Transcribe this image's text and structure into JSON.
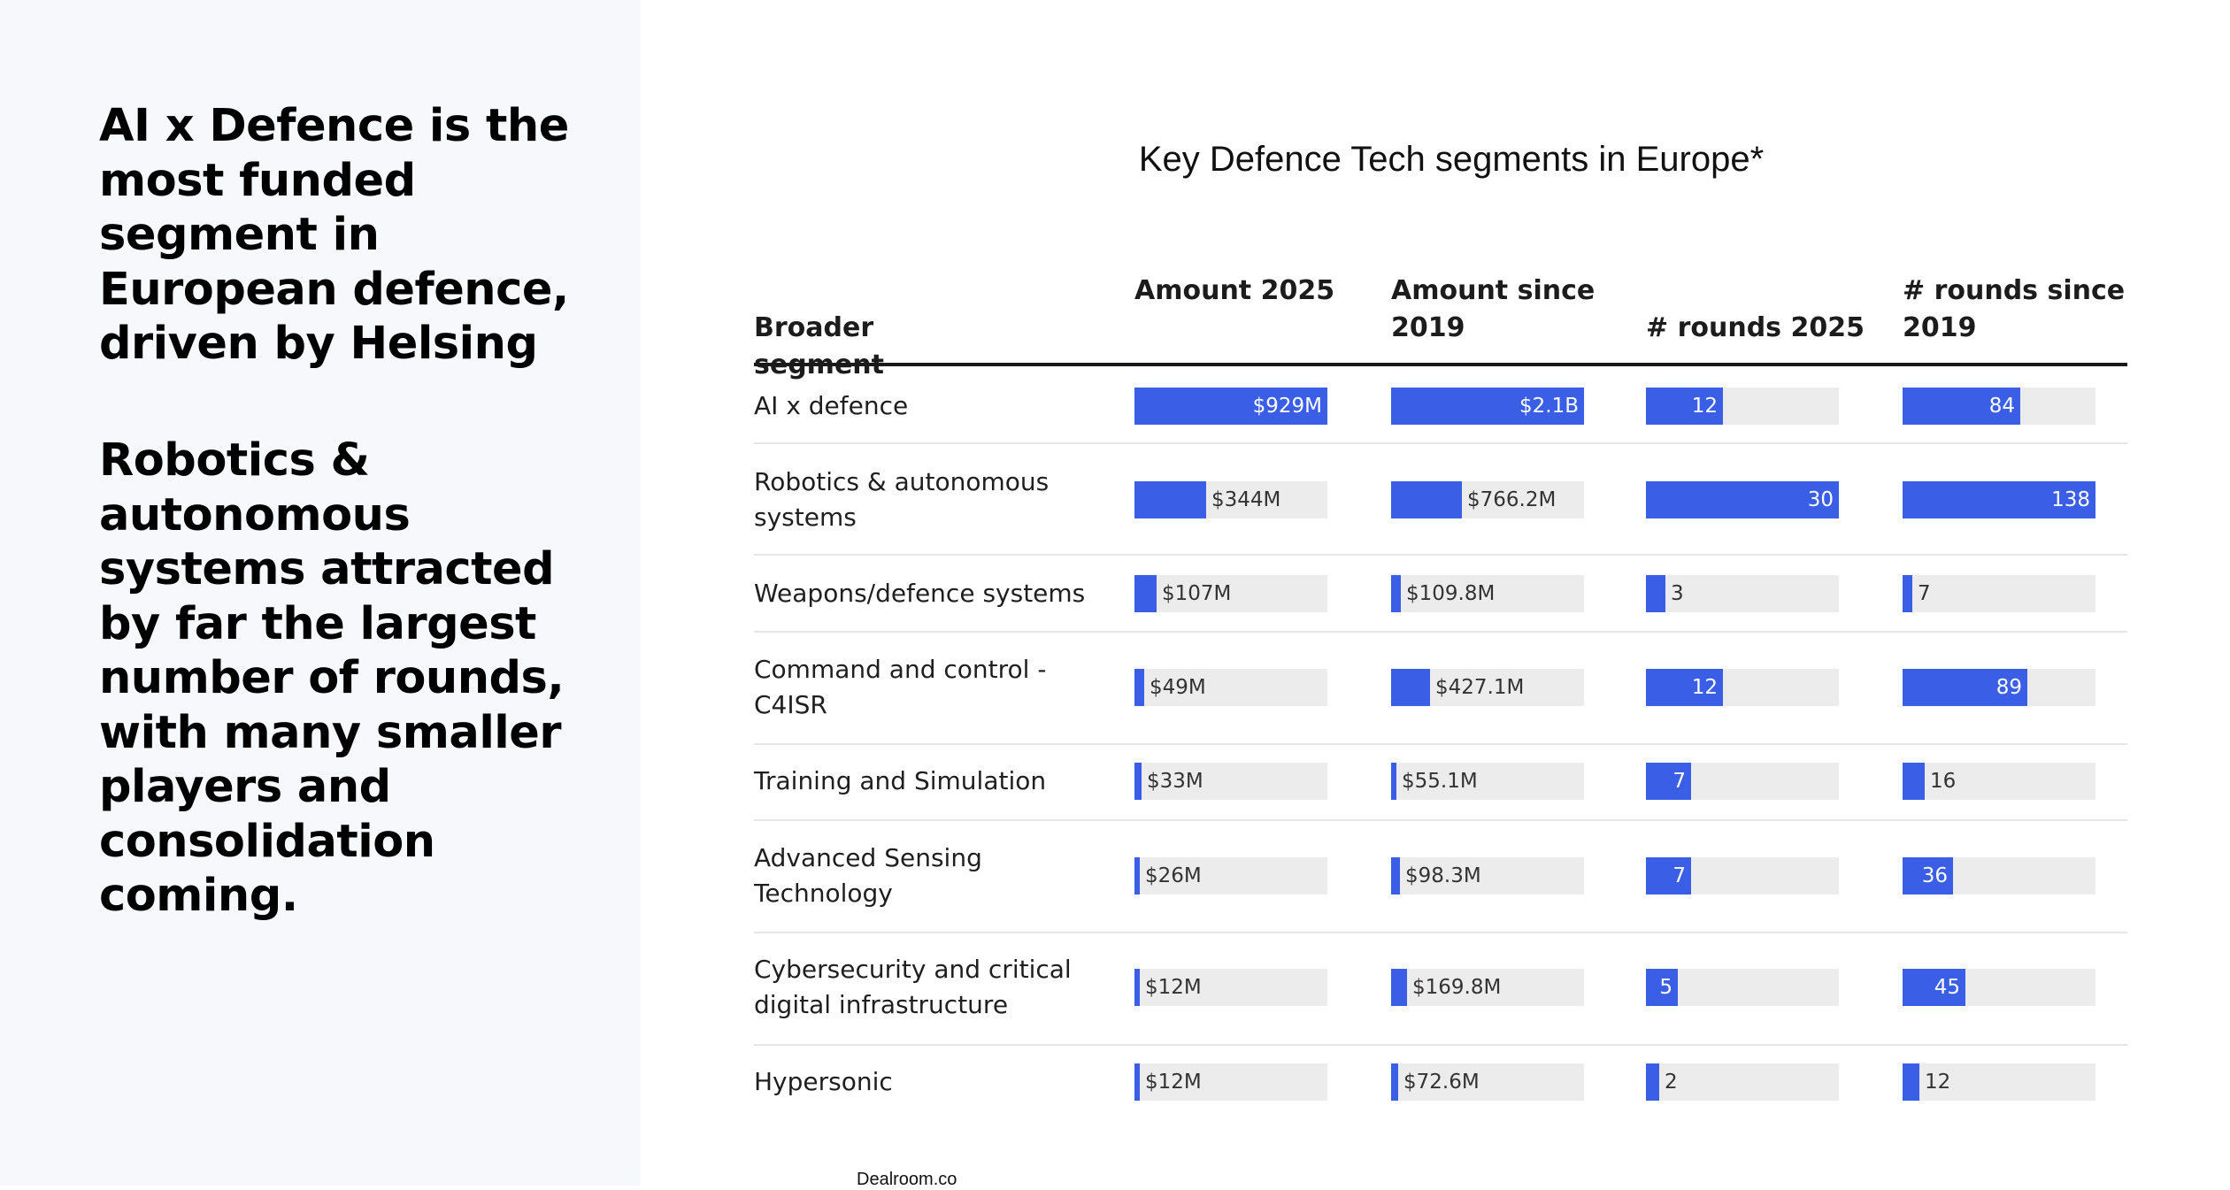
{
  "headline": {
    "part1": "AI x Defence is the most funded segment in European defence, driven by Helsing",
    "part2": "Robotics & autonomous systems attracted by far the largest number of rounds, with many smaller players and consolidation coming."
  },
  "source": "Dealroom.co",
  "chart_data": {
    "type": "table",
    "title": "Key Defence Tech segments in Europe*",
    "columns": [
      "Broader segment",
      "Amount 2025",
      "Amount since 2019",
      "# rounds 2025",
      "# rounds since 2019"
    ],
    "rows": [
      {
        "segment": "AI x defence",
        "values": [
          929,
          2100,
          12,
          84
        ],
        "labels": [
          "$929M",
          "$2.1B",
          "12",
          "84"
        ]
      },
      {
        "segment": "Robotics & autonomous systems",
        "values": [
          344,
          766.2,
          30,
          138
        ],
        "labels": [
          "$344M",
          "$766.2M",
          "30",
          "138"
        ]
      },
      {
        "segment": "Weapons/defence systems",
        "values": [
          107,
          109.8,
          3,
          7
        ],
        "labels": [
          "$107M",
          "$109.8M",
          "3",
          "7"
        ]
      },
      {
        "segment": "Command and control - C4ISR",
        "values": [
          49,
          427.1,
          12,
          89
        ],
        "labels": [
          "$49M",
          "$427.1M",
          "12",
          "89"
        ]
      },
      {
        "segment": "Training and Simulation",
        "values": [
          33,
          55.1,
          7,
          16
        ],
        "labels": [
          "$33M",
          "$55.1M",
          "7",
          "16"
        ]
      },
      {
        "segment": "Advanced Sensing Technology",
        "values": [
          26,
          98.3,
          7,
          36
        ],
        "labels": [
          "$26M",
          "$98.3M",
          "7",
          "36"
        ]
      },
      {
        "segment": "Cybersecurity and critical digital infrastructure",
        "values": [
          12,
          169.8,
          5,
          45
        ],
        "labels": [
          "$12M",
          "$169.8M",
          "5",
          "45"
        ]
      },
      {
        "segment": "Hypersonic",
        "values": [
          12,
          72.6,
          2,
          12
        ],
        "labels": [
          "$12M",
          "$72.6M",
          "2",
          "12"
        ]
      }
    ],
    "column_max": [
      929,
      2100,
      30,
      138
    ],
    "bar_color": "#3a5ee6",
    "track_color": "#ececec"
  }
}
